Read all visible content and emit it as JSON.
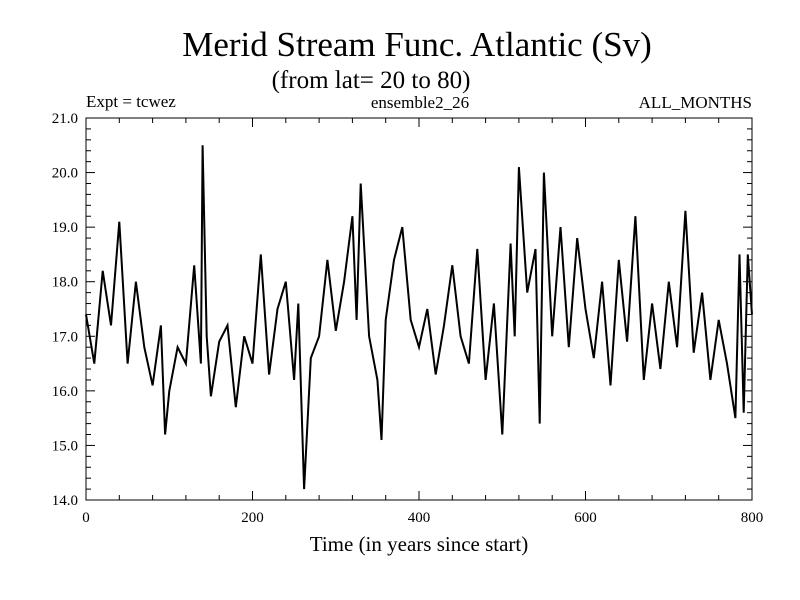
{
  "chart_data": {
    "type": "line",
    "title": "Merid Stream Func. Atlantic (Sv)",
    "subtitle": "(from lat= 20 to 80)",
    "info_left": "Expt = tcwez",
    "info_center": "ensemble2_26",
    "info_right": "ALL_MONTHS",
    "xlabel": "Time (in years since start)",
    "ylabel": "",
    "xlim": [
      0,
      800
    ],
    "ylim": [
      14.0,
      21.0
    ],
    "xticks": [
      0,
      200,
      400,
      600,
      800
    ],
    "yticks": [
      14.0,
      15.0,
      16.0,
      17.0,
      18.0,
      19.0,
      20.0,
      21.0
    ],
    "xtick_labels": [
      "0",
      "200",
      "400",
      "600",
      "800"
    ],
    "ytick_labels": [
      "14.0",
      "15.0",
      "16.0",
      "17.0",
      "18.0",
      "19.0",
      "20.0",
      "21.0"
    ],
    "grid": false,
    "color": "#000000",
    "series": [
      {
        "x": [
          0,
          10,
          20,
          30,
          40,
          50,
          60,
          70,
          80,
          90,
          95,
          100,
          110,
          120,
          130,
          138,
          140,
          145,
          150,
          160,
          170,
          180,
          190,
          200,
          210,
          220,
          230,
          240,
          250,
          255,
          262,
          270,
          280,
          290,
          300,
          310,
          320,
          325,
          330,
          340,
          350,
          355,
          360,
          370,
          380,
          390,
          400,
          410,
          420,
          430,
          440,
          450,
          460,
          470,
          480,
          490,
          500,
          510,
          515,
          520,
          530,
          540,
          545,
          550,
          560,
          570,
          580,
          590,
          600,
          610,
          620,
          630,
          640,
          650,
          660,
          670,
          680,
          690,
          700,
          710,
          720,
          730,
          740,
          750,
          760,
          770,
          780,
          785,
          790,
          795,
          800
        ],
        "y": [
          17.4,
          16.5,
          18.2,
          17.2,
          19.1,
          16.5,
          18.0,
          16.8,
          16.1,
          17.2,
          15.2,
          16.0,
          16.8,
          16.5,
          18.3,
          16.5,
          20.5,
          17.0,
          15.9,
          16.9,
          17.2,
          15.7,
          17.0,
          16.5,
          18.5,
          16.3,
          17.5,
          18.0,
          16.2,
          17.6,
          14.2,
          16.6,
          17.0,
          18.4,
          17.1,
          18.0,
          19.2,
          17.3,
          19.8,
          17.0,
          16.2,
          15.1,
          17.3,
          18.4,
          19.0,
          17.3,
          16.8,
          17.5,
          16.3,
          17.2,
          18.3,
          17.0,
          16.5,
          18.6,
          16.2,
          17.6,
          15.2,
          18.7,
          17.0,
          20.1,
          17.8,
          18.6,
          15.4,
          20.0,
          17.0,
          19.0,
          16.8,
          18.8,
          17.5,
          16.6,
          18.0,
          16.1,
          18.4,
          16.9,
          19.2,
          16.2,
          17.6,
          16.4,
          18.0,
          16.8,
          19.3,
          16.7,
          17.8,
          16.2,
          17.3,
          16.5,
          15.5,
          18.5,
          15.6,
          18.5,
          17.4
        ]
      }
    ]
  }
}
